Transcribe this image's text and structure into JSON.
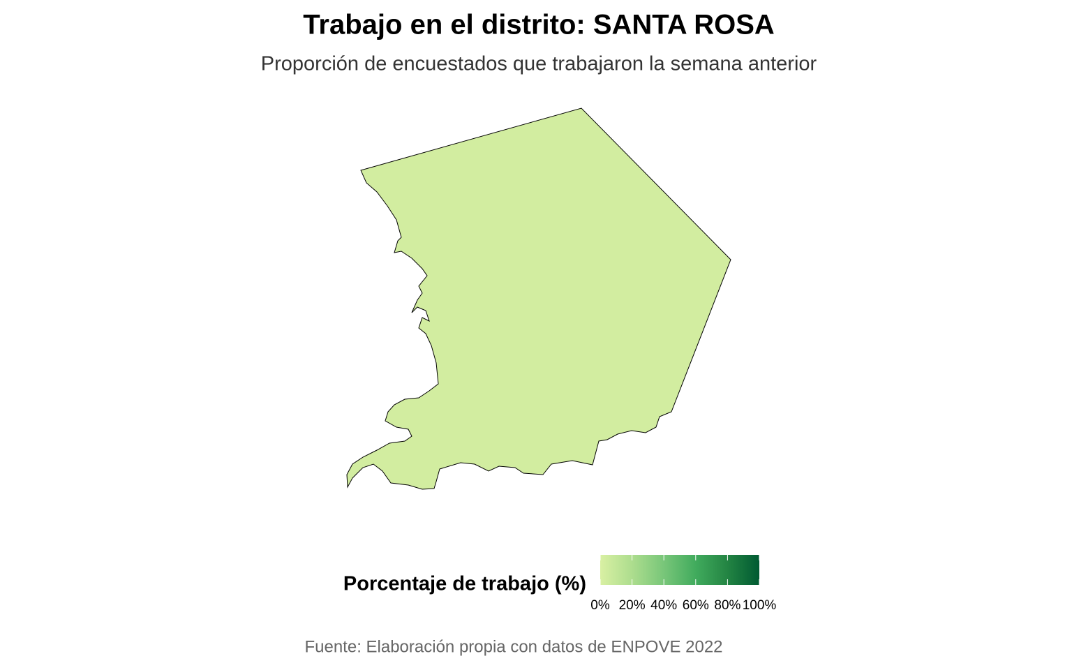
{
  "chart_data": {
    "type": "choropleth",
    "title": "Trabajo en el distrito: SANTA ROSA",
    "subtitle": "Proporción de encuestados que trabajaron la semana anterior",
    "caption": "Fuente: Elaboración propia con datos de ENPOVE 2022",
    "values": [
      3
    ],
    "legend": {
      "title": "Porcentaje de trabajo (%)",
      "lim": [
        0,
        100
      ],
      "ticks": [
        {
          "value": 0,
          "label": "0%"
        },
        {
          "value": 20,
          "label": "20%"
        },
        {
          "value": 40,
          "label": "40%"
        },
        {
          "value": 60,
          "label": "60%"
        },
        {
          "value": 80,
          "label": "80%"
        },
        {
          "value": 100,
          "label": "100%"
        }
      ],
      "colors": [
        "#d9f0a3",
        "#addd8e",
        "#78c679",
        "#41ab5d",
        "#238443",
        "#005a32"
      ]
    }
  }
}
